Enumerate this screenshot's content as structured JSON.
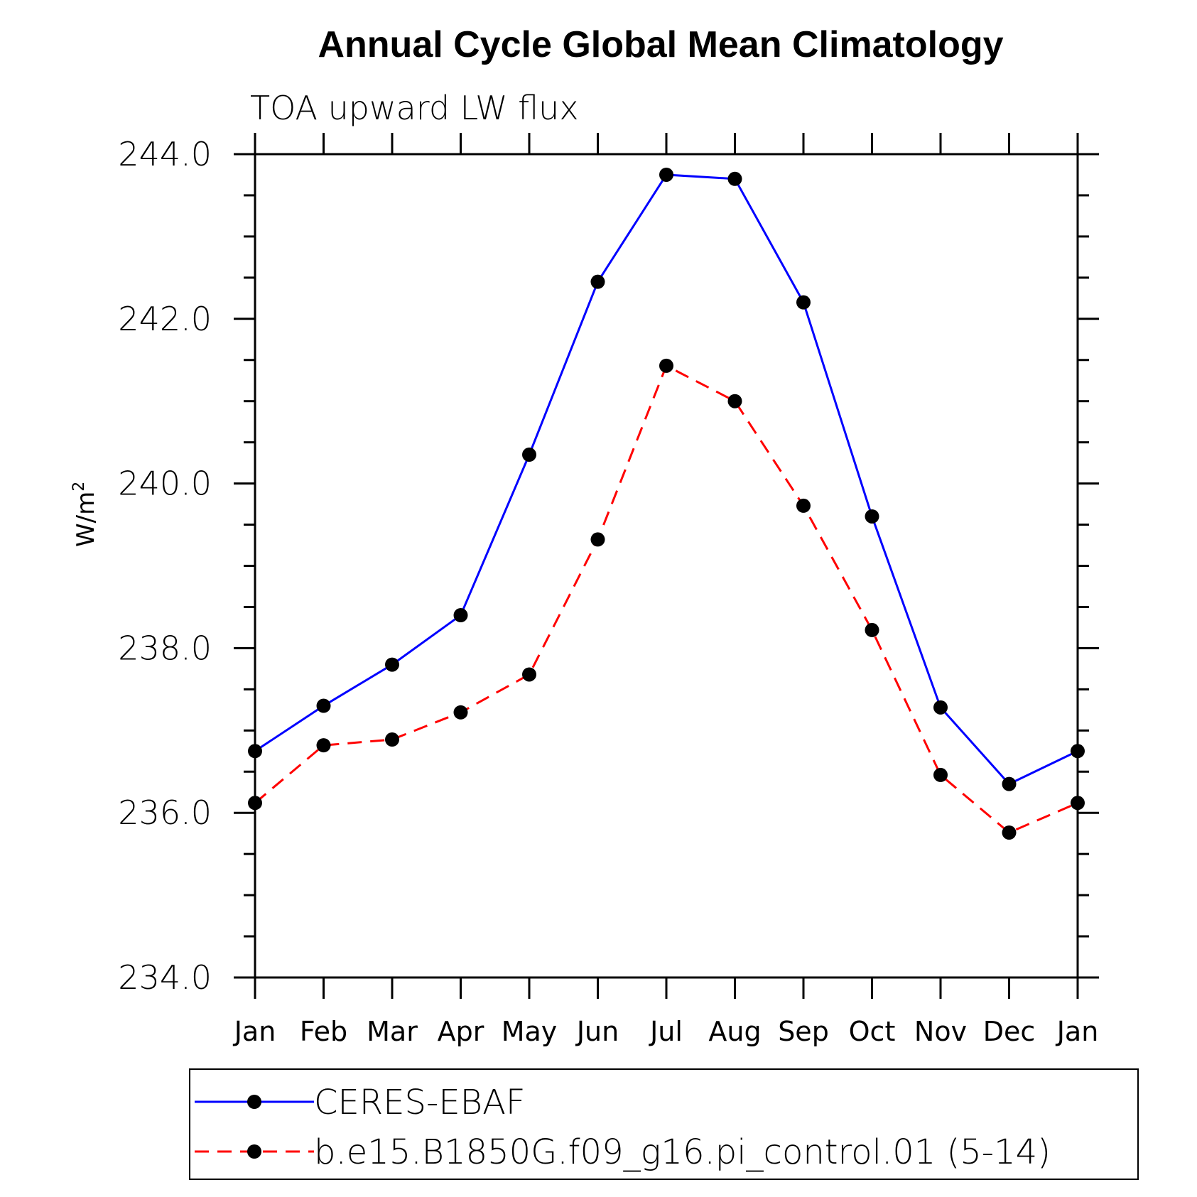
{
  "chart_data": {
    "type": "line",
    "title": "Annual Cycle Global Mean Climatology",
    "subtitle": "TOA upward LW flux",
    "ylabel": "W/m",
    "ylabel_superscript": "2",
    "xlabel": "",
    "categories": [
      "Jan",
      "Feb",
      "Mar",
      "Apr",
      "May",
      "Jun",
      "Jul",
      "Aug",
      "Sep",
      "Oct",
      "Nov",
      "Dec",
      "Jan"
    ],
    "ylim": [
      234.0,
      244.0
    ],
    "yticks": [
      "234.0",
      "236.0",
      "238.0",
      "240.0",
      "242.0",
      "244.0"
    ],
    "grid": false,
    "legend_position": "bottom",
    "series": [
      {
        "name": "CERES-EBAF",
        "color": "#0000ff",
        "dash": "solid",
        "marker": "filled-circle",
        "values": [
          236.75,
          237.3,
          237.8,
          238.4,
          240.35,
          242.45,
          243.75,
          243.7,
          242.2,
          239.6,
          237.28,
          236.35,
          236.75
        ]
      },
      {
        "name": "b.e15.B1850G.f09_g16.pi_control.01 (5-14)",
        "color": "#ff0000",
        "dash": "dashed",
        "marker": "filled-circle",
        "values": [
          236.12,
          236.82,
          236.89,
          237.22,
          237.68,
          239.32,
          241.43,
          241.0,
          239.73,
          238.22,
          236.46,
          235.76,
          236.12
        ]
      }
    ]
  }
}
